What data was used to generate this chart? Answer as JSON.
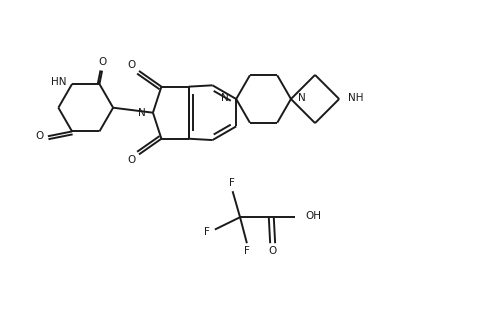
{
  "bg_color": "#ffffff",
  "line_color": "#1a1a1a",
  "line_width": 1.4,
  "font_size": 7.5,
  "figsize": [
    5.04,
    3.1
  ],
  "dpi": 100,
  "xlim": [
    0,
    10.08
  ],
  "ylim": [
    0,
    6.2
  ]
}
